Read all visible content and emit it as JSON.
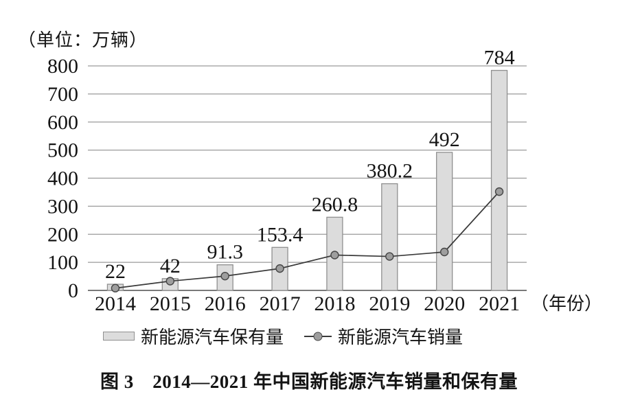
{
  "chart_data": {
    "type": "combo",
    "title": "图 3　2014—2021 年中国新能源汽车销量和保有量",
    "unit_label": "（单位：万辆）",
    "x_axis_suffix": "（年份）",
    "categories": [
      "2014",
      "2015",
      "2016",
      "2017",
      "2018",
      "2019",
      "2020",
      "2021"
    ],
    "series": [
      {
        "name": "新能源汽车保有量",
        "chart_type": "bar",
        "values": [
          22,
          42,
          91.3,
          153.4,
          260.8,
          380.2,
          492,
          784
        ],
        "data_labels": [
          "22",
          "42",
          "91.3",
          "153.4",
          "260.8",
          "380.2",
          "492",
          "784"
        ]
      },
      {
        "name": "新能源汽车销量",
        "chart_type": "line",
        "values": [
          8,
          33,
          51,
          78,
          126,
          121,
          137,
          352
        ]
      }
    ],
    "ylim": [
      0,
      800
    ],
    "y_ticks": [
      0,
      100,
      200,
      300,
      400,
      500,
      600,
      700,
      800
    ],
    "grid": "horizontal",
    "legend_position": "bottom",
    "colors": {
      "bar_fill": "#dcdcdc",
      "bar_stroke": "#8f8f8f",
      "line": "#3a3a3a",
      "marker_fill": "#9e9e9e",
      "marker_stroke": "#454545",
      "grid": "#9a9a9a",
      "axis": "#4d4d4d",
      "text": "#141414"
    }
  }
}
